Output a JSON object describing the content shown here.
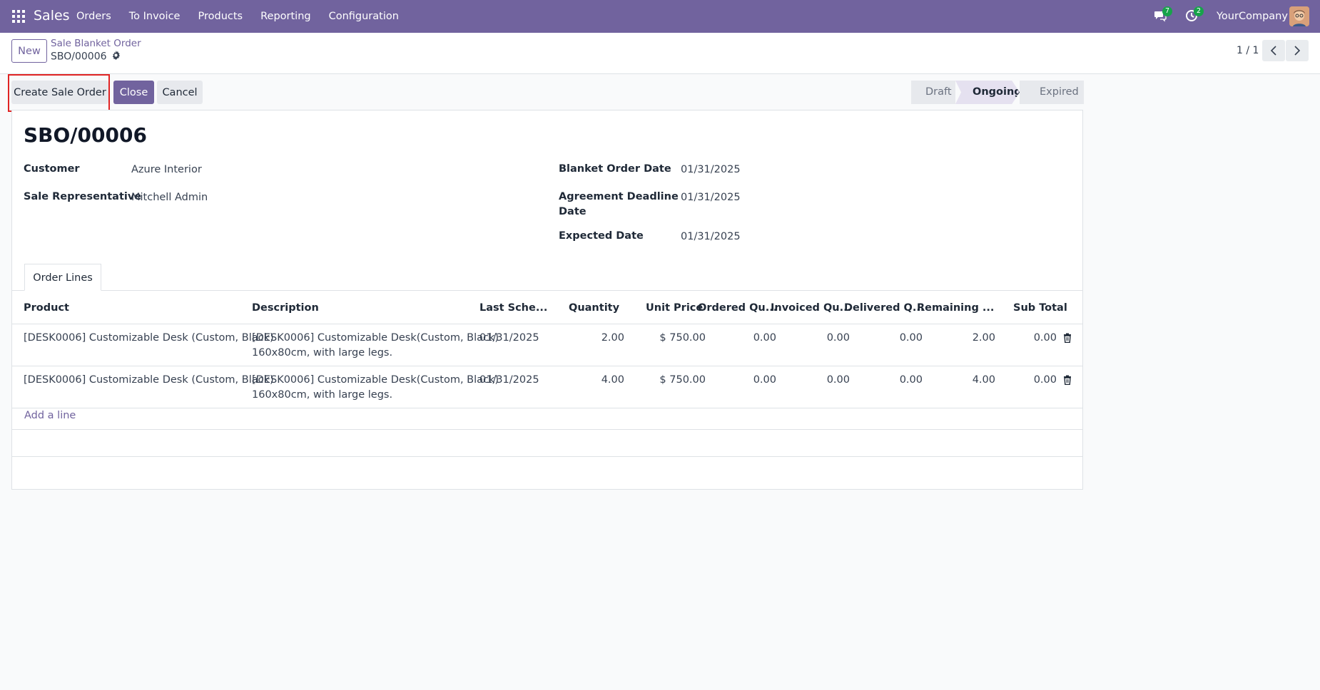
{
  "navbar": {
    "app_name": "Sales",
    "menu": [
      "Orders",
      "To Invoice",
      "Products",
      "Reporting",
      "Configuration"
    ],
    "messages_count": "7",
    "activities_count": "2",
    "company": "YourCompany"
  },
  "control_panel": {
    "new_label": "New",
    "breadcrumb_parent": "Sale Blanket Order",
    "breadcrumb_current": "SBO/00006",
    "pager": "1 / 1"
  },
  "actions": {
    "create_sale_order": "Create Sale Order",
    "close": "Close",
    "cancel": "Cancel"
  },
  "statusbar": {
    "stages": [
      "Draft",
      "Ongoing",
      "Expired"
    ],
    "active": "Ongoing"
  },
  "record": {
    "title": "SBO/00006",
    "customer_label": "Customer",
    "customer": "Azure Interior",
    "salesrep_label": "Sale Representative",
    "salesrep": "Mitchell Admin",
    "blanket_date_label": "Blanket Order Date",
    "blanket_date": "01/31/2025",
    "deadline_label_line1": "Agreement Deadline",
    "deadline_label_line2": "Date",
    "deadline": "01/31/2025",
    "expected_label": "Expected Date",
    "expected": "01/31/2025"
  },
  "tabs": {
    "order_lines": "Order Lines"
  },
  "table": {
    "headers": {
      "product": "Product",
      "description": "Description",
      "last_sched": "Last Sche...",
      "quantity": "Quantity",
      "unit_price": "Unit Price",
      "ordered": "Ordered Qu...",
      "invoiced": "Invoiced Qu...",
      "delivered": "Delivered Q...",
      "remaining": "Remaining ...",
      "subtotal": "Sub Total"
    },
    "rows": [
      {
        "product": "[DESK0006] Customizable Desk (Custom, Black)",
        "desc1": "[DESK0006] Customizable Desk(Custom, Black)",
        "desc2": "160x80cm, with large legs.",
        "date": "01/31/2025",
        "qty": "2.00",
        "price": "$ 750.00",
        "ordered": "0.00",
        "invoiced": "0.00",
        "delivered": "0.00",
        "remaining": "2.00",
        "subtotal": "0.00"
      },
      {
        "product": "[DESK0006] Customizable Desk (Custom, Black)",
        "desc1": "[DESK0006] Customizable Desk(Custom, Black)",
        "desc2": "160x80cm, with large legs.",
        "date": "01/31/2025",
        "qty": "4.00",
        "price": "$ 750.00",
        "ordered": "0.00",
        "invoiced": "0.00",
        "delivered": "0.00",
        "remaining": "4.00",
        "subtotal": "0.00"
      }
    ],
    "add_line": "Add a line"
  },
  "icons": {
    "apps": "apps-grid-icon",
    "messages": "chat-icon",
    "activities": "clock-icon",
    "settings": "gear-icon",
    "prev": "chevron-left-icon",
    "next": "chevron-right-icon",
    "delete": "trash-icon"
  },
  "colors": {
    "brand": "#71639e",
    "badge": "#17a34a",
    "highlight": "#e02424"
  }
}
